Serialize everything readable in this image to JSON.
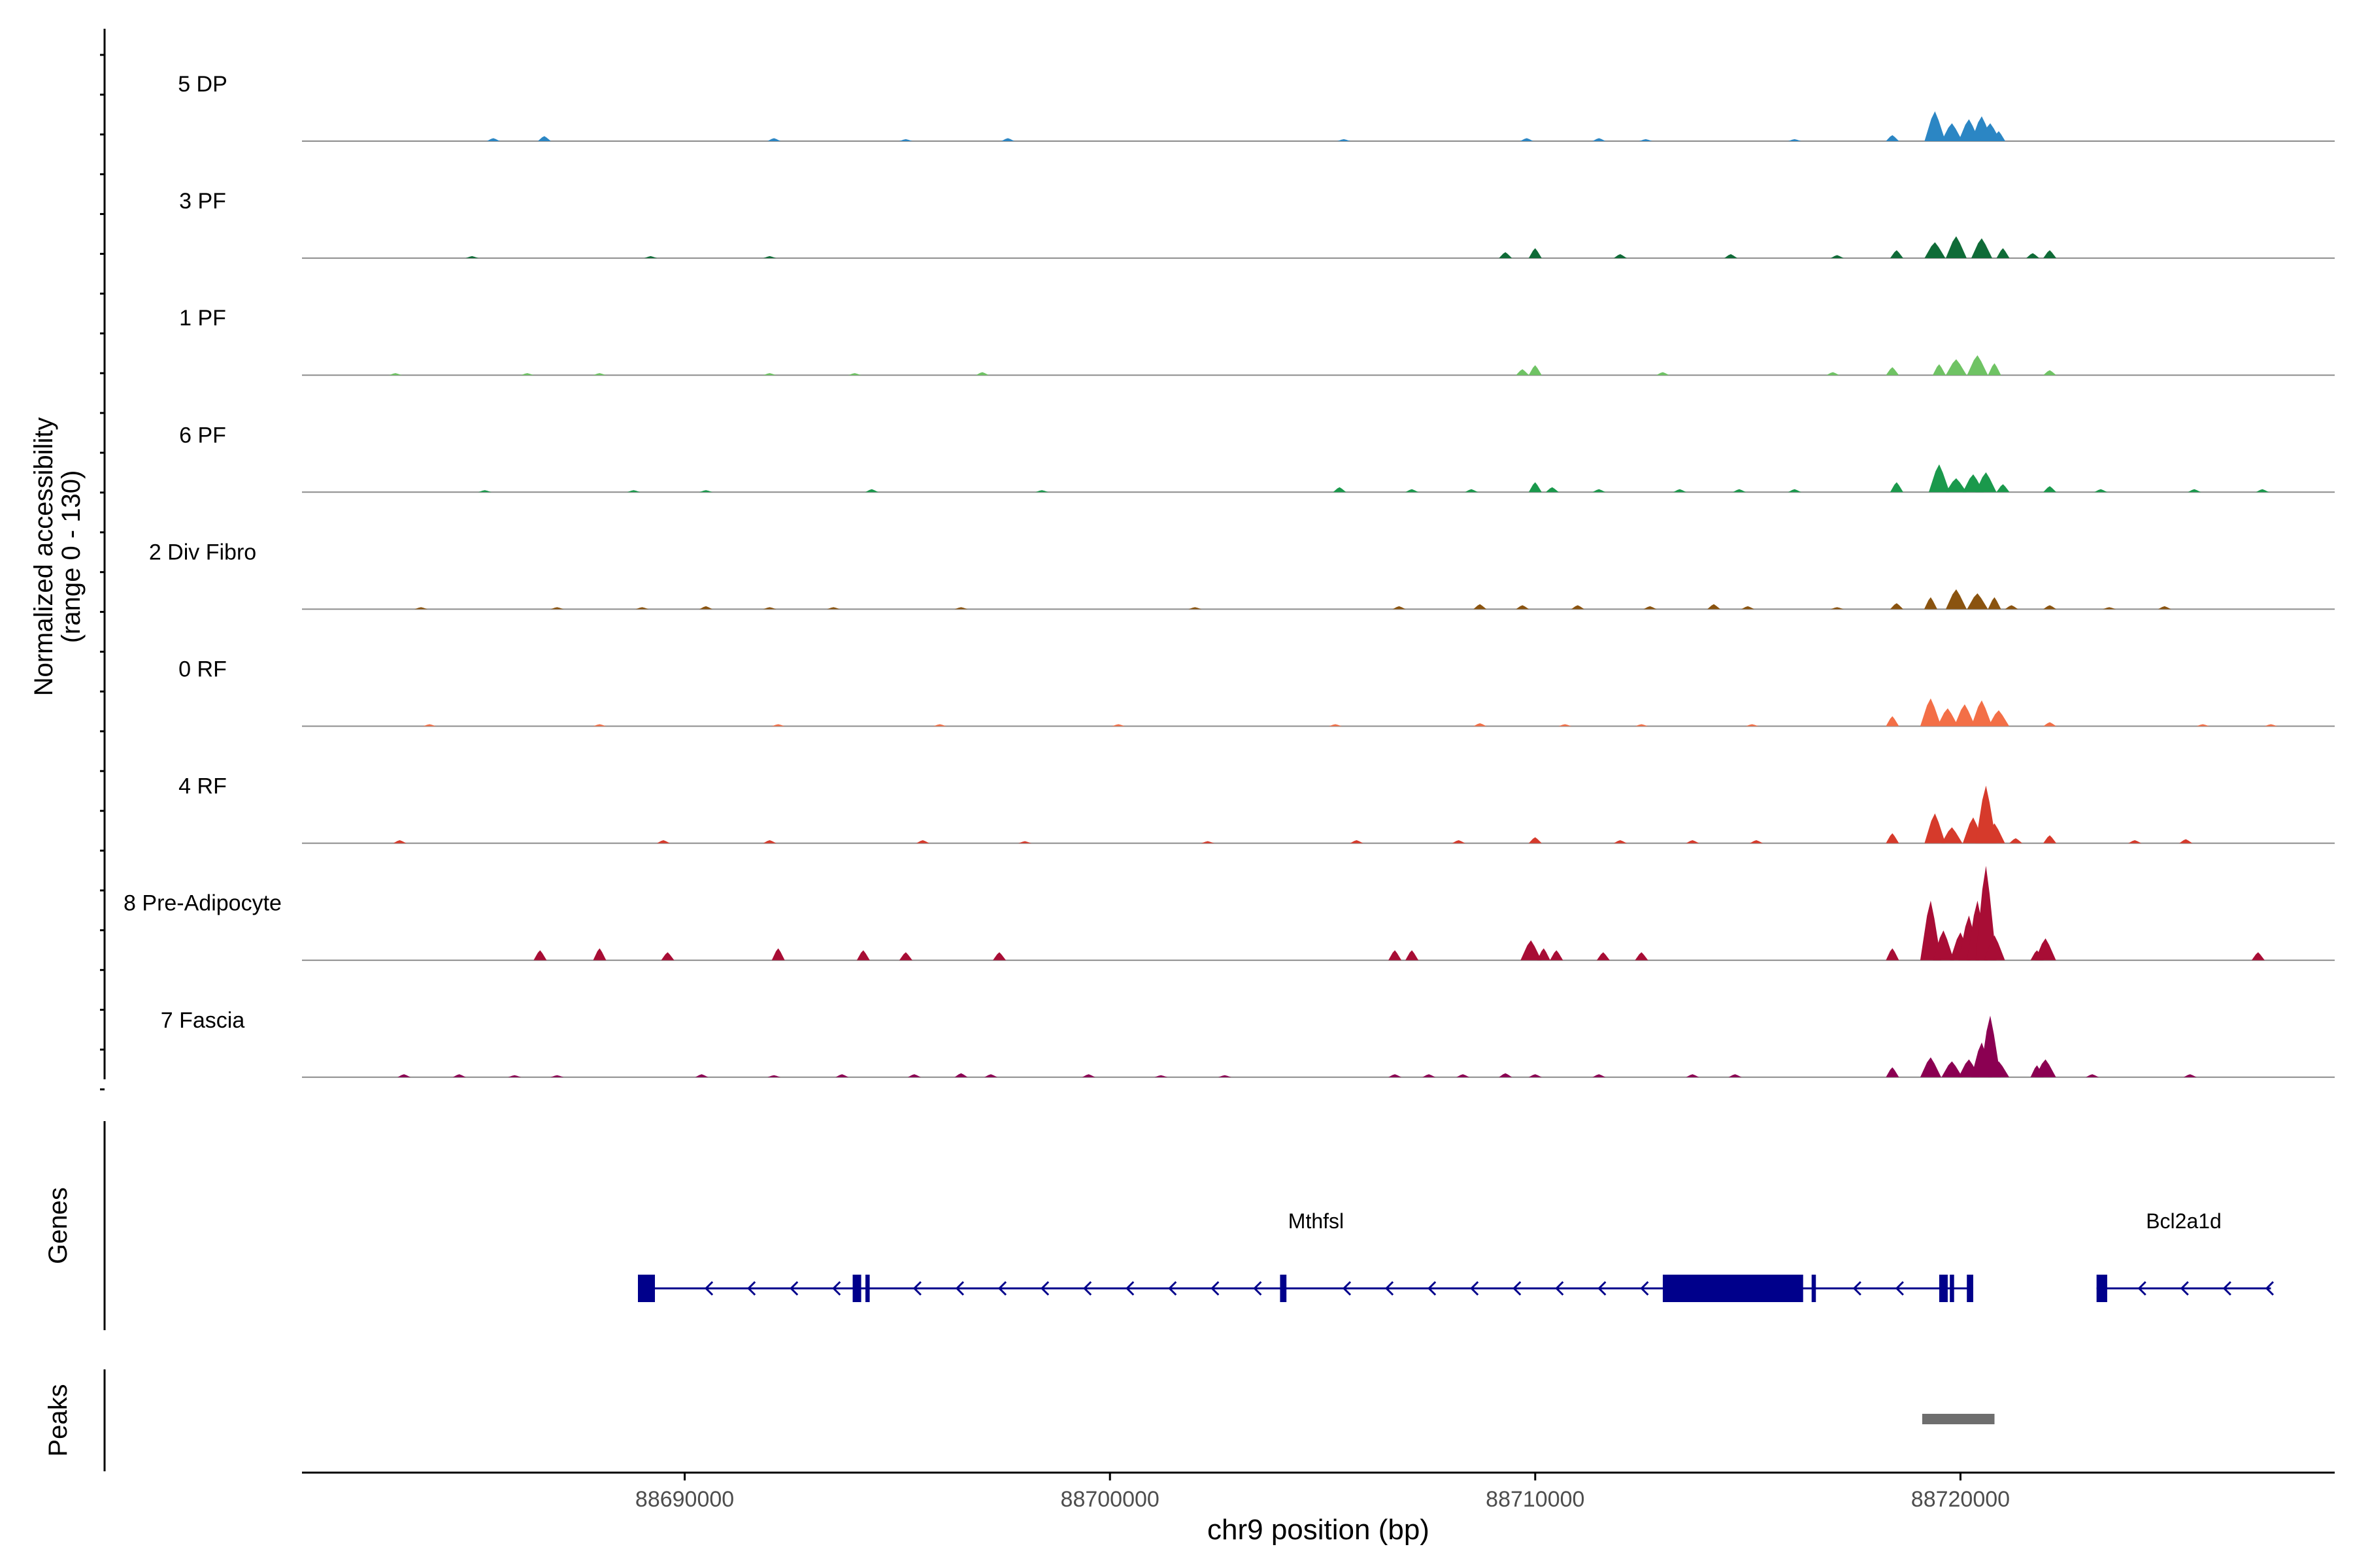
{
  "chart_data": {
    "type": "area",
    "title": "",
    "xlabel": "chr9 position (bp)",
    "ylabel": "Normalized accessibility",
    "ylabel_range": "(range 0 - 130)",
    "y_range": [
      0,
      130
    ],
    "xlim": [
      88681000,
      88728800
    ],
    "x_ticks": [
      88690000,
      88700000,
      88710000,
      88720000
    ],
    "x_tick_labels": [
      "88690000",
      "88700000",
      "88710000",
      "88720000"
    ],
    "track_panel_labels": {
      "genes": "Genes",
      "peaks": "Peaks"
    },
    "tracks": [
      {
        "name": "5 DP",
        "color": "#2b86c4",
        "peaks": [
          [
            88685500,
            3
          ],
          [
            88686700,
            5
          ],
          [
            88692100,
            3
          ],
          [
            88695200,
            2
          ],
          [
            88697600,
            3
          ],
          [
            88705500,
            2
          ],
          [
            88709800,
            3
          ],
          [
            88711500,
            3
          ],
          [
            88712600,
            2
          ],
          [
            88716100,
            2
          ],
          [
            88718400,
            6
          ],
          [
            88719400,
            30
          ],
          [
            88719800,
            18
          ],
          [
            88720200,
            22
          ],
          [
            88720500,
            25
          ],
          [
            88720700,
            18
          ],
          [
            88720900,
            10
          ]
        ]
      },
      {
        "name": "3 PF",
        "color": "#0f6b37",
        "peaks": [
          [
            88685000,
            2
          ],
          [
            88689200,
            2
          ],
          [
            88692000,
            2
          ],
          [
            88709300,
            6
          ],
          [
            88710000,
            10
          ],
          [
            88712000,
            4
          ],
          [
            88714600,
            4
          ],
          [
            88717100,
            3
          ],
          [
            88718500,
            8
          ],
          [
            88719400,
            16
          ],
          [
            88719900,
            22
          ],
          [
            88720500,
            20
          ],
          [
            88721000,
            10
          ],
          [
            88721700,
            5
          ],
          [
            88722100,
            8
          ]
        ]
      },
      {
        "name": "1 PF",
        "color": "#6fc364",
        "peaks": [
          [
            88683200,
            2
          ],
          [
            88686300,
            2
          ],
          [
            88688000,
            2
          ],
          [
            88692000,
            2
          ],
          [
            88694000,
            2
          ],
          [
            88697000,
            3
          ],
          [
            88709700,
            6
          ],
          [
            88710000,
            10
          ],
          [
            88713000,
            3
          ],
          [
            88717000,
            3
          ],
          [
            88718400,
            8
          ],
          [
            88719500,
            11
          ],
          [
            88719900,
            16
          ],
          [
            88720400,
            20
          ],
          [
            88720800,
            12
          ],
          [
            88722100,
            5
          ]
        ]
      },
      {
        "name": "6 PF",
        "color": "#1a994c",
        "peaks": [
          [
            88685300,
            2
          ],
          [
            88688800,
            2
          ],
          [
            88690500,
            2
          ],
          [
            88694400,
            3
          ],
          [
            88698400,
            2
          ],
          [
            88705400,
            5
          ],
          [
            88707100,
            3
          ],
          [
            88708500,
            3
          ],
          [
            88710000,
            10
          ],
          [
            88710400,
            5
          ],
          [
            88711500,
            3
          ],
          [
            88713400,
            3
          ],
          [
            88714800,
            3
          ],
          [
            88716100,
            3
          ],
          [
            88718500,
            10
          ],
          [
            88719500,
            28
          ],
          [
            88719900,
            14
          ],
          [
            88720300,
            18
          ],
          [
            88720600,
            20
          ],
          [
            88721000,
            8
          ],
          [
            88722100,
            6
          ],
          [
            88723300,
            3
          ],
          [
            88725500,
            3
          ],
          [
            88727100,
            3
          ]
        ]
      },
      {
        "name": "2 Div Fibro",
        "color": "#8a530f",
        "peaks": [
          [
            88683800,
            2
          ],
          [
            88687000,
            2
          ],
          [
            88689000,
            2
          ],
          [
            88690500,
            3
          ],
          [
            88692000,
            2
          ],
          [
            88693500,
            2
          ],
          [
            88696500,
            2
          ],
          [
            88702000,
            2
          ],
          [
            88706800,
            3
          ],
          [
            88708700,
            5
          ],
          [
            88709700,
            4
          ],
          [
            88711000,
            4
          ],
          [
            88712700,
            3
          ],
          [
            88714200,
            5
          ],
          [
            88715000,
            3
          ],
          [
            88717100,
            2
          ],
          [
            88718500,
            6
          ],
          [
            88719300,
            12
          ],
          [
            88719900,
            20
          ],
          [
            88720400,
            16
          ],
          [
            88720800,
            12
          ],
          [
            88721200,
            4
          ],
          [
            88722100,
            4
          ],
          [
            88723500,
            2
          ],
          [
            88724800,
            3
          ]
        ]
      },
      {
        "name": "0 RF",
        "color": "#f36f47",
        "peaks": [
          [
            88684000,
            2
          ],
          [
            88688000,
            2
          ],
          [
            88692200,
            2
          ],
          [
            88696000,
            2
          ],
          [
            88700200,
            2
          ],
          [
            88705300,
            2
          ],
          [
            88708700,
            3
          ],
          [
            88710700,
            2
          ],
          [
            88712500,
            2
          ],
          [
            88715100,
            2
          ],
          [
            88718400,
            10
          ],
          [
            88719300,
            28
          ],
          [
            88719700,
            18
          ],
          [
            88720100,
            22
          ],
          [
            88720500,
            26
          ],
          [
            88720900,
            16
          ],
          [
            88722100,
            4
          ],
          [
            88725700,
            2
          ],
          [
            88727300,
            2
          ]
        ]
      },
      {
        "name": "4 RF",
        "color": "#d63a2b",
        "peaks": [
          [
            88683300,
            3
          ],
          [
            88689500,
            3
          ],
          [
            88692000,
            3
          ],
          [
            88695600,
            3
          ],
          [
            88698000,
            2
          ],
          [
            88702300,
            2
          ],
          [
            88705800,
            3
          ],
          [
            88708200,
            3
          ],
          [
            88710000,
            6
          ],
          [
            88712000,
            3
          ],
          [
            88713700,
            3
          ],
          [
            88715200,
            3
          ],
          [
            88718400,
            10
          ],
          [
            88719400,
            30
          ],
          [
            88719800,
            16
          ],
          [
            88720300,
            26
          ],
          [
            88720600,
            58
          ],
          [
            88720800,
            20
          ],
          [
            88721300,
            5
          ],
          [
            88722100,
            8
          ],
          [
            88724100,
            3
          ],
          [
            88725300,
            4
          ]
        ]
      },
      {
        "name": "8 Pre-Adipocyte",
        "color": "#a80d35",
        "peaks": [
          [
            88686600,
            10
          ],
          [
            88688000,
            12
          ],
          [
            88689600,
            8
          ],
          [
            88692200,
            12
          ],
          [
            88694200,
            10
          ],
          [
            88695200,
            8
          ],
          [
            88697400,
            8
          ],
          [
            88706700,
            10
          ],
          [
            88707100,
            10
          ],
          [
            88709900,
            20
          ],
          [
            88710200,
            12
          ],
          [
            88710500,
            10
          ],
          [
            88711600,
            8
          ],
          [
            88712500,
            8
          ],
          [
            88718400,
            12
          ],
          [
            88719300,
            60
          ],
          [
            88719600,
            30
          ],
          [
            88720000,
            28
          ],
          [
            88720200,
            45
          ],
          [
            88720400,
            60
          ],
          [
            88720600,
            95
          ],
          [
            88720800,
            25
          ],
          [
            88721800,
            10
          ],
          [
            88722000,
            22
          ],
          [
            88727000,
            8
          ]
        ]
      },
      {
        "name": "7 Fascia",
        "color": "#8b0052",
        "peaks": [
          [
            88683400,
            3
          ],
          [
            88684700,
            3
          ],
          [
            88686000,
            2
          ],
          [
            88687000,
            2
          ],
          [
            88690400,
            3
          ],
          [
            88692100,
            2
          ],
          [
            88693700,
            3
          ],
          [
            88695400,
            3
          ],
          [
            88696500,
            4
          ],
          [
            88697200,
            3
          ],
          [
            88699500,
            3
          ],
          [
            88701200,
            2
          ],
          [
            88702700,
            2
          ],
          [
            88706700,
            3
          ],
          [
            88707500,
            3
          ],
          [
            88708300,
            3
          ],
          [
            88709300,
            4
          ],
          [
            88710000,
            3
          ],
          [
            88711500,
            3
          ],
          [
            88713700,
            3
          ],
          [
            88714700,
            3
          ],
          [
            88718400,
            10
          ],
          [
            88719300,
            20
          ],
          [
            88719800,
            16
          ],
          [
            88720200,
            18
          ],
          [
            88720500,
            35
          ],
          [
            88720700,
            62
          ],
          [
            88720900,
            16
          ],
          [
            88721800,
            12
          ],
          [
            88722000,
            18
          ],
          [
            88723100,
            3
          ],
          [
            88725400,
            3
          ]
        ]
      }
    ],
    "genes": [
      {
        "name": "Mthfsl",
        "start": 88688900,
        "end": 88720300,
        "strand": "-",
        "exons": [
          [
            88688900,
            88689300
          ],
          [
            88693950,
            88694150
          ],
          [
            88694250,
            88694350
          ],
          [
            88704000,
            88704150
          ],
          [
            88713000,
            88716300
          ],
          [
            88716500,
            88716600
          ],
          [
            88719500,
            88719700
          ],
          [
            88719750,
            88719850
          ],
          [
            88720150,
            88720300
          ]
        ],
        "arrows": [
          88690500,
          88691500,
          88692500,
          88693500,
          88695400,
          88696400,
          88697400,
          88698400,
          88699400,
          88700400,
          88701400,
          88702400,
          88703400,
          88705500,
          88706500,
          88707500,
          88708500,
          88709500,
          88710500,
          88711500,
          88712500,
          88717500,
          88718500
        ]
      },
      {
        "name": "Bcl2a1d",
        "start": 88723200,
        "end": 88727300,
        "strand": "-",
        "exons": [
          [
            88723200,
            88723450
          ]
        ],
        "arrows": [
          88724200,
          88725200,
          88726200,
          88727200
        ]
      }
    ],
    "peak_regions": [
      [
        88719100,
        88720800
      ]
    ]
  }
}
